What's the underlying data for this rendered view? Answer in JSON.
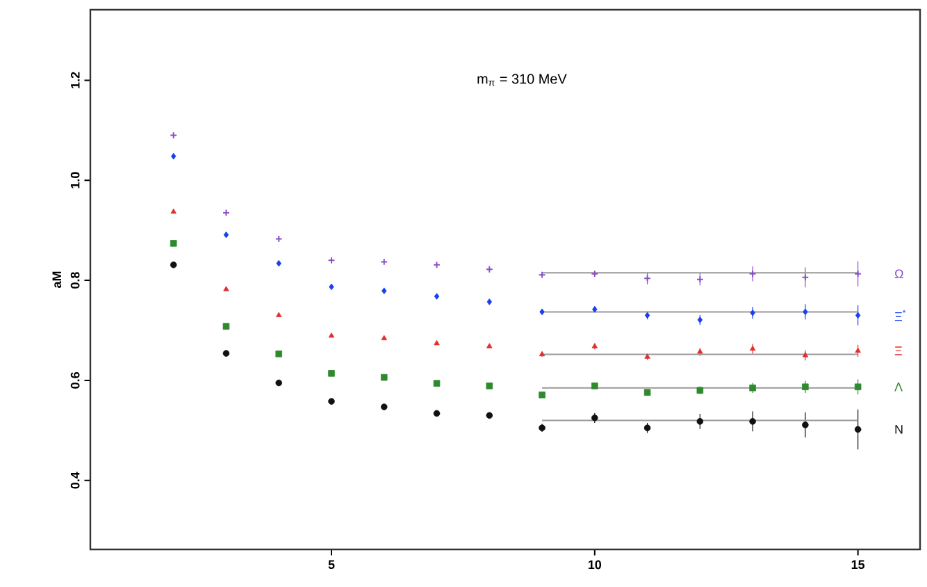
{
  "chart_data": {
    "type": "scatter",
    "ylabel": "aM",
    "annotations": [
      "m$_{π}$ =  310  MeV"
    ],
    "xlim": [
      0.42,
      16.18
    ],
    "ylim": [
      0.262,
      1.341
    ],
    "xticks": [
      5,
      10,
      15
    ],
    "yticks": [
      {
        "value": 0.4,
        "label": "0.4"
      },
      {
        "value": 0.6,
        "label": "0.6"
      },
      {
        "value": 0.8,
        "label": "0.8"
      },
      {
        "value": 1.0,
        "label": "1.0"
      },
      {
        "value": 1.2,
        "label": "1.2"
      }
    ],
    "legend": false,
    "grid": false,
    "series": [
      {
        "name": "Ω",
        "color": "#8a4fc8",
        "marker": "cross",
        "x": [
          2,
          3,
          4,
          5,
          6,
          7,
          8,
          9,
          10,
          11,
          12,
          13,
          14,
          15
        ],
        "values": [
          1.09,
          0.935,
          0.883,
          0.84,
          0.837,
          0.831,
          0.822,
          0.811,
          0.813,
          0.804,
          0.802,
          0.813,
          0.806,
          0.813
        ],
        "errors": [
          null,
          null,
          null,
          null,
          null,
          null,
          null,
          null,
          null,
          0.012,
          0.012,
          0.015,
          0.02,
          0.025
        ]
      },
      {
        "name": "Ξ$^{*}$",
        "color": "#1a3ff0",
        "marker": "diamond",
        "x": [
          2,
          3,
          4,
          5,
          6,
          7,
          8,
          9,
          10,
          11,
          12,
          13,
          14,
          15
        ],
        "values": [
          1.048,
          0.891,
          0.834,
          0.787,
          0.779,
          0.768,
          0.757,
          0.737,
          0.742,
          0.73,
          0.721,
          0.735,
          0.737,
          0.73
        ],
        "errors": [
          null,
          null,
          null,
          null,
          null,
          null,
          null,
          0.005,
          0.006,
          0.008,
          0.01,
          0.012,
          0.015,
          0.02
        ]
      },
      {
        "name": "Ξ",
        "color": "#e03030",
        "marker": "triangle",
        "x": [
          2,
          3,
          4,
          5,
          6,
          7,
          8,
          9,
          10,
          11,
          12,
          13,
          14,
          15
        ],
        "values": [
          0.937,
          0.782,
          0.73,
          0.689,
          0.684,
          0.674,
          0.668,
          0.652,
          0.668,
          0.647,
          0.657,
          0.663,
          0.65,
          0.659
        ],
        "errors": [
          null,
          null,
          null,
          null,
          null,
          null,
          null,
          0.005,
          0.006,
          0.006,
          0.008,
          0.01,
          0.01,
          0.012
        ]
      },
      {
        "name": "Λ",
        "color": "#2f8a2f",
        "marker": "square",
        "x": [
          2,
          3,
          4,
          5,
          6,
          7,
          8,
          9,
          10,
          11,
          12,
          13,
          14,
          15
        ],
        "values": [
          0.874,
          0.708,
          0.653,
          0.614,
          0.606,
          0.594,
          0.589,
          0.571,
          0.589,
          0.576,
          0.58,
          0.585,
          0.587,
          0.587
        ],
        "errors": [
          null,
          null,
          null,
          null,
          null,
          null,
          null,
          0.005,
          0.006,
          0.006,
          0.008,
          0.01,
          0.012,
          0.015
        ]
      },
      {
        "name": "N",
        "color": "#111111",
        "marker": "circle",
        "x": [
          2,
          3,
          4,
          5,
          6,
          7,
          8,
          9,
          10,
          11,
          12,
          13,
          14,
          15
        ],
        "values": [
          0.831,
          0.654,
          0.595,
          0.558,
          0.547,
          0.534,
          0.53,
          0.505,
          0.525,
          0.505,
          0.518,
          0.518,
          0.511,
          0.502
        ],
        "errors": [
          null,
          null,
          null,
          null,
          null,
          null,
          null,
          0.008,
          0.01,
          0.01,
          0.015,
          0.02,
          0.025,
          0.04
        ]
      },
      {
        "type": "line",
        "color": "#999999",
        "x": [
          9,
          15
        ],
        "values": [
          0.815,
          0.815
        ]
      },
      {
        "type": "line",
        "color": "#999999",
        "x": [
          9,
          15
        ],
        "values": [
          0.737,
          0.737
        ]
      },
      {
        "type": "line",
        "color": "#999999",
        "x": [
          9,
          15
        ],
        "values": [
          0.652,
          0.652
        ]
      },
      {
        "type": "line",
        "color": "#999999",
        "x": [
          9,
          15
        ],
        "values": [
          0.585,
          0.585
        ]
      },
      {
        "type": "line",
        "color": "#999999",
        "x": [
          9,
          15
        ],
        "values": [
          0.52,
          0.52
        ]
      }
    ]
  }
}
